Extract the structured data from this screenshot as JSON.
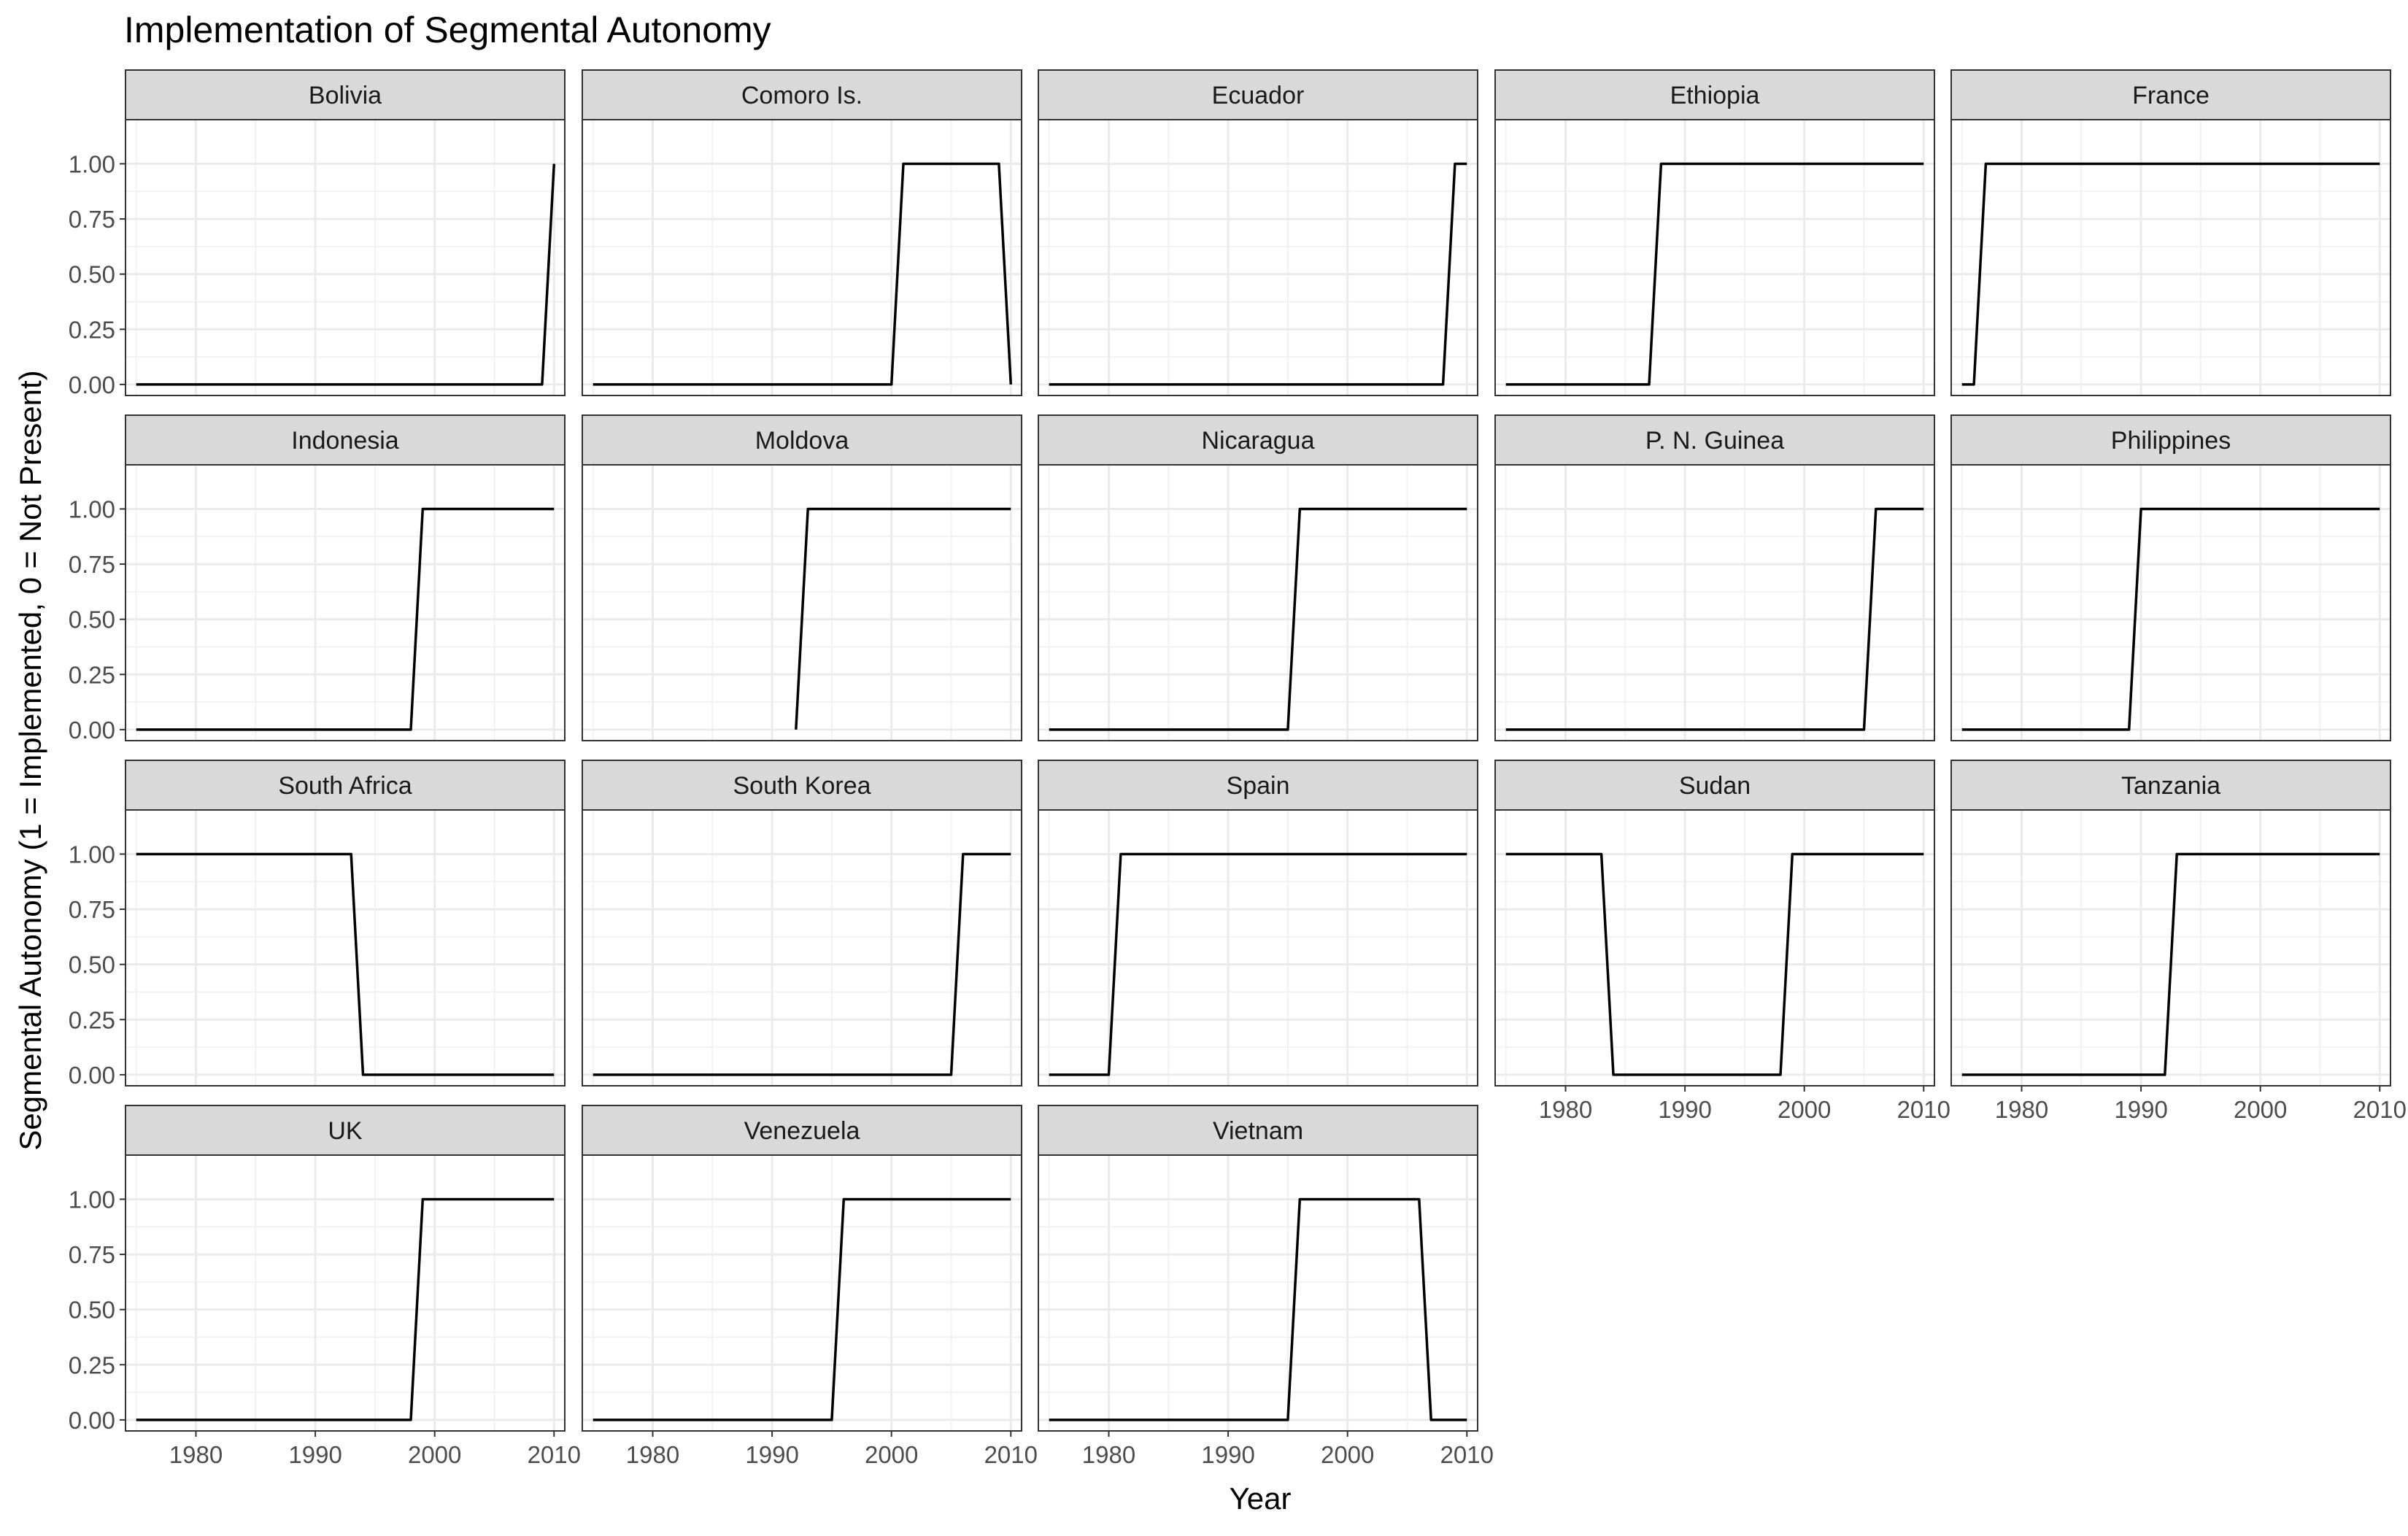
{
  "chart_data": {
    "type": "line",
    "title": "Implementation of Segmental Autonomy",
    "xlabel": "Year",
    "ylabel": "Segmental Autonomy (1 = Implemented, 0 = Not Present)",
    "xlim": [
      1974.1,
      2010.9
    ],
    "ylim": [
      -0.05,
      1.2
    ],
    "x_ticks": [
      1980,
      1990,
      2000,
      2010
    ],
    "y_ticks": [
      0,
      0.25,
      0.5,
      0.75,
      1
    ],
    "y_tick_labels": [
      "0.00",
      "0.25",
      "0.50",
      "0.75",
      "1.00"
    ],
    "x_tick_labels": [
      "1980",
      "1990",
      "2000",
      "2010"
    ],
    "grid": true,
    "facets": [
      {
        "name": "Bolivia",
        "x": [
          1975,
          2009,
          2010
        ],
        "y": [
          0,
          0,
          1
        ]
      },
      {
        "name": "Comoro Is.",
        "x": [
          1975,
          2000,
          2001,
          2009,
          2010
        ],
        "y": [
          0,
          0,
          1,
          1,
          0
        ]
      },
      {
        "name": "Ecuador",
        "x": [
          1975,
          2008,
          2009,
          2010
        ],
        "y": [
          0,
          0,
          1,
          1
        ]
      },
      {
        "name": "Ethiopia",
        "x": [
          1975,
          1987,
          1988,
          2010
        ],
        "y": [
          0,
          0,
          1,
          1
        ]
      },
      {
        "name": "France",
        "x": [
          1975,
          1976,
          1977,
          2010
        ],
        "y": [
          0,
          0,
          1,
          1
        ]
      },
      {
        "name": "Indonesia",
        "x": [
          1975,
          1998,
          1999,
          2010
        ],
        "y": [
          0,
          0,
          1,
          1
        ]
      },
      {
        "name": "Moldova",
        "x": [
          1992,
          1993,
          2010
        ],
        "y": [
          0,
          1,
          1
        ]
      },
      {
        "name": "Nicaragua",
        "x": [
          1975,
          1995,
          1996,
          2010
        ],
        "y": [
          0,
          0,
          1,
          1
        ]
      },
      {
        "name": "P. N. Guinea",
        "x": [
          1975,
          2005,
          2006,
          2010
        ],
        "y": [
          0,
          0,
          1,
          1
        ]
      },
      {
        "name": "Philippines",
        "x": [
          1975,
          1989,
          1990,
          2010
        ],
        "y": [
          0,
          0,
          1,
          1
        ]
      },
      {
        "name": "South Africa",
        "x": [
          1975,
          1993,
          1994,
          2010
        ],
        "y": [
          1,
          1,
          0,
          0
        ]
      },
      {
        "name": "South Korea",
        "x": [
          1975,
          2005,
          2006,
          2010
        ],
        "y": [
          0,
          0,
          1,
          1
        ]
      },
      {
        "name": "Spain",
        "x": [
          1975,
          1980,
          1981,
          2010
        ],
        "y": [
          0,
          0,
          1,
          1
        ]
      },
      {
        "name": "Sudan",
        "x": [
          1975,
          1983,
          1984,
          1998,
          1999,
          2010
        ],
        "y": [
          1,
          1,
          0,
          0,
          1,
          1
        ]
      },
      {
        "name": "Tanzania",
        "x": [
          1975,
          1992,
          1993,
          2010
        ],
        "y": [
          0,
          0,
          1,
          1
        ]
      },
      {
        "name": "UK",
        "x": [
          1975,
          1998,
          1999,
          2010
        ],
        "y": [
          0,
          0,
          1,
          1
        ]
      },
      {
        "name": "Venezuela",
        "x": [
          1975,
          1995,
          1996,
          2010
        ],
        "y": [
          0,
          0,
          1,
          1
        ]
      },
      {
        "name": "Vietnam",
        "x": [
          1975,
          1995,
          1996,
          2006,
          2007,
          2010
        ],
        "y": [
          0,
          0,
          1,
          1,
          0,
          0
        ]
      }
    ]
  }
}
